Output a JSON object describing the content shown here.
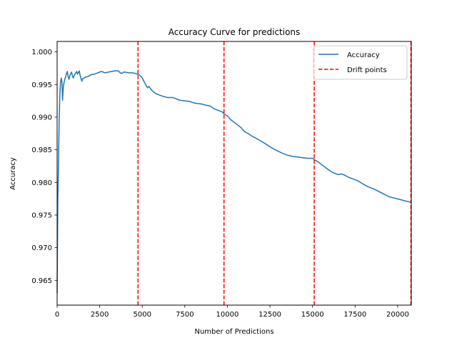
{
  "chart_data": {
    "type": "line",
    "title": "Accuracy Curve for predictions",
    "xlabel": "Number of Predictions",
    "ylabel": "Accuracy",
    "xlim": [
      0,
      20800
    ],
    "ylim": [
      0.9612,
      1.0016
    ],
    "xticks": [
      0,
      2500,
      5000,
      7500,
      10000,
      12500,
      15000,
      17500,
      20000
    ],
    "xtick_labels": [
      "0",
      "2500",
      "5000",
      "7500",
      "10000",
      "12500",
      "15000",
      "17500",
      "20000"
    ],
    "yticks": [
      0.965,
      0.97,
      0.975,
      0.98,
      0.985,
      0.99,
      0.995,
      1.0
    ],
    "ytick_labels": [
      "0.965",
      "0.970",
      "0.975",
      "0.980",
      "0.985",
      "0.990",
      "0.995",
      "1.000"
    ],
    "grid": false,
    "legend_position": "top-right",
    "series": [
      {
        "name": "Accuracy",
        "color": "#1f77b4",
        "style": "solid",
        "x": [
          0,
          40,
          80,
          120,
          160,
          200,
          240,
          280,
          320,
          360,
          400,
          450,
          500,
          550,
          600,
          650,
          700,
          750,
          800,
          850,
          900,
          950,
          1000,
          1050,
          1100,
          1150,
          1200,
          1250,
          1300,
          1350,
          1400,
          1450,
          1500,
          1600,
          1700,
          1800,
          2000,
          2200,
          2400,
          2600,
          2800,
          3000,
          3200,
          3400,
          3600,
          3700,
          3800,
          3900,
          4000,
          4200,
          4400,
          4600,
          4800,
          4900,
          5000,
          5100,
          5200,
          5300,
          5400,
          5500,
          5600,
          5800,
          6000,
          6200,
          6500,
          6800,
          7000,
          7200,
          7500,
          7800,
          8000,
          8200,
          8500,
          8800,
          9000,
          9200,
          9500,
          9700,
          9800,
          10000,
          10200,
          10500,
          10800,
          11000,
          11200,
          11500,
          11800,
          12000,
          12300,
          12600,
          12900,
          13200,
          13500,
          13800,
          14100,
          14400,
          14700,
          15000,
          15100,
          15300,
          15600,
          15900,
          16200,
          16500,
          16700,
          16900,
          17100,
          17400,
          17700,
          18000,
          18300,
          18600,
          18900,
          19200,
          19500,
          19800,
          20100,
          20400,
          20700,
          20800
        ],
        "y": [
          0.963,
          0.977,
          0.983,
          0.9895,
          0.9935,
          0.9953,
          0.996,
          0.9955,
          0.9926,
          0.9945,
          0.9952,
          0.9958,
          0.9962,
          0.9967,
          0.997,
          0.9962,
          0.9958,
          0.9964,
          0.9967,
          0.9969,
          0.9963,
          0.996,
          0.9964,
          0.9966,
          0.9968,
          0.997,
          0.9966,
          0.9968,
          0.9971,
          0.9964,
          0.996,
          0.9955,
          0.9959,
          0.996,
          0.9962,
          0.9962,
          0.9965,
          0.9966,
          0.9968,
          0.997,
          0.9968,
          0.9969,
          0.997,
          0.9971,
          0.9971,
          0.9968,
          0.9967,
          0.9969,
          0.9969,
          0.9968,
          0.9968,
          0.9967,
          0.9965,
          0.9963,
          0.996,
          0.9955,
          0.995,
          0.9945,
          0.9947,
          0.9943,
          0.994,
          0.9936,
          0.9934,
          0.9932,
          0.993,
          0.993,
          0.9928,
          0.9926,
          0.9925,
          0.9924,
          0.9922,
          0.9921,
          0.992,
          0.9918,
          0.9917,
          0.9913,
          0.991,
          0.9908,
          0.9905,
          0.9902,
          0.9896,
          0.989,
          0.9884,
          0.9878,
          0.9875,
          0.987,
          0.9866,
          0.9863,
          0.9858,
          0.9853,
          0.9849,
          0.9845,
          0.9842,
          0.984,
          0.9839,
          0.9838,
          0.9837,
          0.9837,
          0.9835,
          0.9832,
          0.9826,
          0.982,
          0.9815,
          0.9812,
          0.9813,
          0.9811,
          0.9808,
          0.9805,
          0.9802,
          0.9797,
          0.9793,
          0.979,
          0.9786,
          0.9782,
          0.9778,
          0.9776,
          0.9774,
          0.9772,
          0.977,
          0.977
        ]
      },
      {
        "name": "Drift points",
        "color": "#ff0000",
        "style": "dashed",
        "type": "vline",
        "x": [
          4750,
          9800,
          15100,
          20800
        ]
      }
    ]
  }
}
